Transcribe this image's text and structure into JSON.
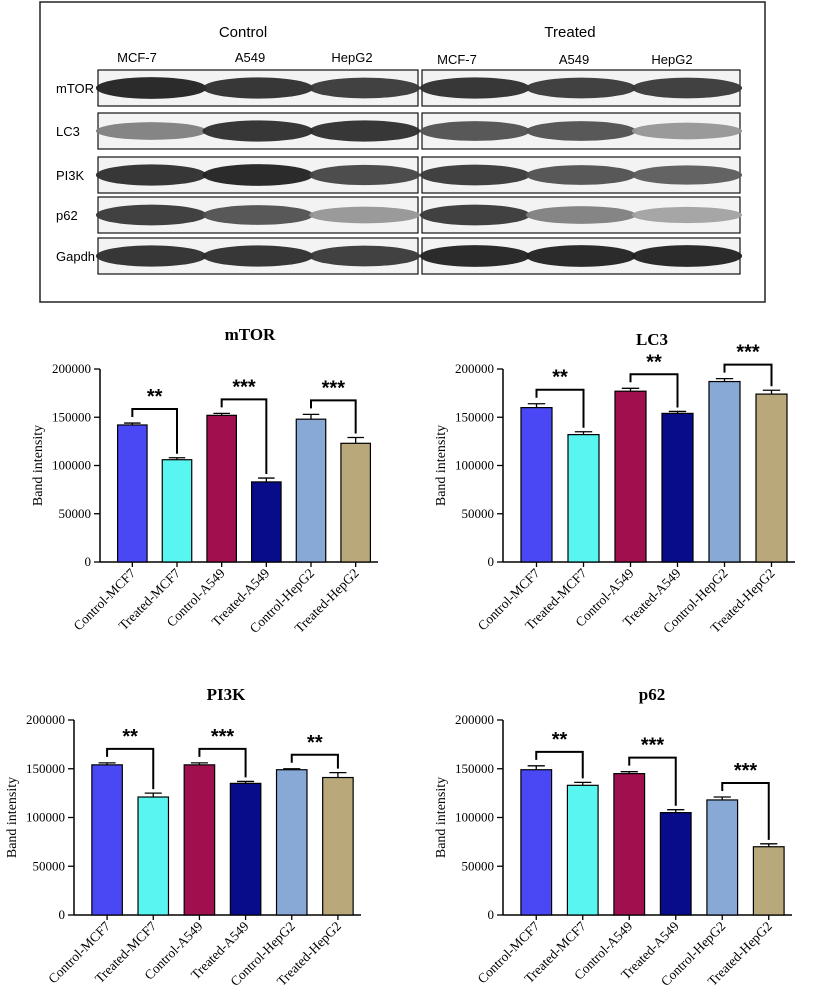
{
  "blot": {
    "groups": [
      {
        "label": "Control",
        "lanes": [
          "MCF-7",
          "A549",
          "HepG2"
        ]
      },
      {
        "label": "Treated",
        "lanes": [
          "MCF-7",
          "A549",
          "HepG2"
        ]
      }
    ],
    "rows": [
      {
        "label": "mTOR",
        "intensity": [
          [
            0.95,
            0.9,
            0.85
          ],
          [
            0.9,
            0.85,
            0.85
          ]
        ]
      },
      {
        "label": "LC3",
        "intensity": [
          [
            0.55,
            0.9,
            0.9
          ],
          [
            0.75,
            0.75,
            0.45
          ]
        ]
      },
      {
        "label": "PI3K",
        "intensity": [
          [
            0.9,
            0.95,
            0.8
          ],
          [
            0.85,
            0.75,
            0.7
          ]
        ]
      },
      {
        "label": "p62",
        "intensity": [
          [
            0.85,
            0.75,
            0.45
          ],
          [
            0.85,
            0.55,
            0.4
          ]
        ]
      },
      {
        "label": "Gapdh",
        "intensity": [
          [
            0.9,
            0.9,
            0.85
          ],
          [
            0.95,
            0.95,
            0.95
          ]
        ]
      }
    ]
  },
  "colors": [
    "#4a47f5",
    "#59f5f0",
    "#a0104f",
    "#080c8a",
    "#88a8d6",
    "#b8a87a"
  ],
  "chart_data": [
    {
      "type": "bar",
      "title": "mTOR",
      "ylabel": "Band intensity",
      "ylim": [
        0,
        200000
      ],
      "yticks": [
        0,
        50000,
        100000,
        150000,
        200000
      ],
      "categories": [
        "Control-MCF7",
        "Treated-MCF7",
        "Control-A549",
        "Treated-A549",
        "Control-HepG2",
        "Treated-HepG2"
      ],
      "values": [
        142000,
        106000,
        152000,
        83000,
        148000,
        123000
      ],
      "errors": [
        2000,
        2000,
        2000,
        4000,
        5000,
        6000
      ],
      "significance": [
        {
          "pair": [
            0,
            1
          ],
          "label": "**"
        },
        {
          "pair": [
            2,
            3
          ],
          "label": "***"
        },
        {
          "pair": [
            4,
            5
          ],
          "label": "***"
        }
      ]
    },
    {
      "type": "bar",
      "title": "LC3",
      "ylabel": "Band intensity",
      "ylim": [
        0,
        200000
      ],
      "yticks": [
        0,
        50000,
        100000,
        150000,
        200000
      ],
      "categories": [
        "Control-MCF7",
        "Treated-MCF7",
        "Control-A549",
        "Treated-A549",
        "Control-HepG2",
        "Treated-HepG2"
      ],
      "values": [
        160000,
        132000,
        177000,
        154000,
        187000,
        174000
      ],
      "errors": [
        4000,
        3000,
        3000,
        2000,
        3000,
        4000
      ],
      "significance": [
        {
          "pair": [
            0,
            1
          ],
          "label": "**"
        },
        {
          "pair": [
            2,
            3
          ],
          "label": "**"
        },
        {
          "pair": [
            4,
            5
          ],
          "label": "***"
        }
      ]
    },
    {
      "type": "bar",
      "title": "PI3K",
      "ylabel": "Band intensity",
      "ylim": [
        0,
        200000
      ],
      "yticks": [
        0,
        50000,
        100000,
        150000,
        200000
      ],
      "categories": [
        "Control-MCF7",
        "Treated-MCF7",
        "Control-A549",
        "Treated-A549",
        "Control-HepG2",
        "Treated-HepG2"
      ],
      "values": [
        154000,
        121000,
        154000,
        135000,
        149000,
        141000
      ],
      "errors": [
        2000,
        4000,
        2000,
        2000,
        1000,
        5000
      ],
      "significance": [
        {
          "pair": [
            0,
            1
          ],
          "label": "**"
        },
        {
          "pair": [
            2,
            3
          ],
          "label": "***"
        },
        {
          "pair": [
            4,
            5
          ],
          "label": "**"
        }
      ]
    },
    {
      "type": "bar",
      "title": "p62",
      "ylabel": "Band intensity",
      "ylim": [
        0,
        200000
      ],
      "yticks": [
        0,
        50000,
        100000,
        150000,
        200000
      ],
      "categories": [
        "Control-MCF7",
        "Treated-MCF7",
        "Control-A549",
        "Treated-A549",
        "Control-HepG2",
        "Treated-HepG2"
      ],
      "values": [
        149000,
        133000,
        145000,
        105000,
        118000,
        70000
      ],
      "errors": [
        4000,
        3000,
        2000,
        3000,
        3000,
        3000
      ],
      "significance": [
        {
          "pair": [
            0,
            1
          ],
          "label": "**"
        },
        {
          "pair": [
            2,
            3
          ],
          "label": "***"
        },
        {
          "pair": [
            4,
            5
          ],
          "label": "***"
        }
      ]
    }
  ]
}
